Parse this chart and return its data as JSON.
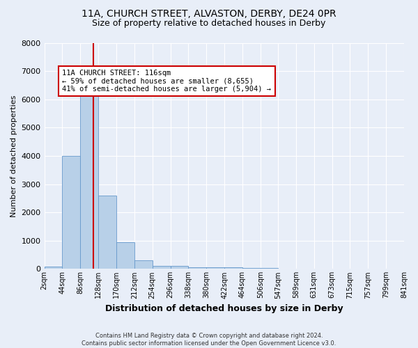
{
  "title": "11A, CHURCH STREET, ALVASTON, DERBY, DE24 0PR",
  "subtitle": "Size of property relative to detached houses in Derby",
  "xlabel": "Distribution of detached houses by size in Derby",
  "ylabel": "Number of detached properties",
  "footer_line1": "Contains HM Land Registry data © Crown copyright and database right 2024.",
  "footer_line2": "Contains public sector information licensed under the Open Government Licence v3.0.",
  "bin_edges": [
    2,
    44,
    86,
    128,
    170,
    212,
    254,
    296,
    338,
    380,
    422,
    464,
    506,
    547,
    589,
    631,
    673,
    715,
    757,
    799,
    841
  ],
  "bin_labels": [
    "2sqm",
    "44sqm",
    "86sqm",
    "128sqm",
    "170sqm",
    "212sqm",
    "254sqm",
    "296sqm",
    "338sqm",
    "380sqm",
    "422sqm",
    "464sqm",
    "506sqm",
    "547sqm",
    "589sqm",
    "631sqm",
    "673sqm",
    "715sqm",
    "757sqm",
    "799sqm",
    "841sqm"
  ],
  "bar_heights": [
    75,
    4000,
    6600,
    2600,
    950,
    300,
    120,
    100,
    70,
    60,
    50,
    40,
    30,
    20,
    15,
    10,
    8,
    5,
    3,
    2
  ],
  "bar_color": "#b8d0e8",
  "bar_edge_color": "#6699cc",
  "property_size": 116,
  "vline_color": "#cc0000",
  "annotation_text": "11A CHURCH STREET: 116sqm\n← 59% of detached houses are smaller (8,655)\n41% of semi-detached houses are larger (5,904) →",
  "annotation_box_color": "#ffffff",
  "annotation_box_edge_color": "#cc0000",
  "ylim": [
    0,
    8000
  ],
  "background_color": "#e8eef8",
  "grid_color": "#ffffff",
  "title_fontsize": 10,
  "subtitle_fontsize": 9
}
